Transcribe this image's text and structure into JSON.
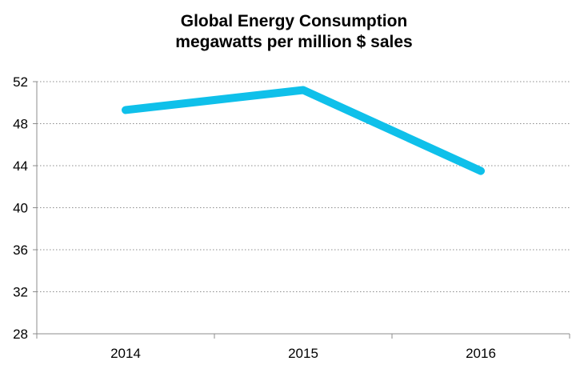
{
  "chart_data": {
    "type": "line",
    "title": "Global Energy Consumption",
    "subtitle": "megawatts per million $ sales",
    "xlabel": "",
    "ylabel": "",
    "categories": [
      "2014",
      "2015",
      "2016"
    ],
    "series": [
      {
        "values": [
          49.3,
          51.2,
          43.5
        ],
        "color": "#0fc0ea"
      }
    ],
    "ylim": [
      28,
      52
    ],
    "yticks": [
      28,
      32,
      36,
      40,
      44,
      48,
      52
    ],
    "ytick_labels": [
      "28",
      "32",
      "36",
      "40",
      "44",
      "48",
      "52"
    ],
    "grid": "horizontal dotted",
    "legend": "none"
  }
}
